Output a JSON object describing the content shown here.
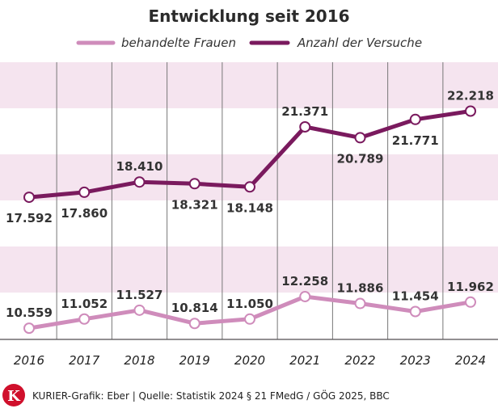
{
  "chart_data": {
    "type": "line",
    "title": "Entwicklung seit 2016",
    "categories": [
      "2016",
      "2017",
      "2018",
      "2019",
      "2020",
      "2021",
      "2022",
      "2023",
      "2024"
    ],
    "series": [
      {
        "name": "behandelte Frauen",
        "color": "#cf8cbb",
        "values": [
          10559,
          11052,
          11527,
          10814,
          11050,
          12258,
          11886,
          11454,
          11962
        ],
        "labels": [
          "10.559",
          "11.052",
          "11.527",
          "10.814",
          "11.050",
          "12.258",
          "11.886",
          "11.454",
          "11.962"
        ]
      },
      {
        "name": "Anzahl der Versuche",
        "color": "#7a1a5e",
        "values": [
          17592,
          17860,
          18410,
          18321,
          18148,
          21371,
          20789,
          21771,
          22218
        ],
        "labels": [
          "17.592",
          "17.860",
          "18.410",
          "18.321",
          "18.148",
          "21.371",
          "20.789",
          "21.771",
          "22.218"
        ]
      }
    ],
    "legend_position": "top",
    "grid": "vertical",
    "band_color": "#f5e4ef"
  },
  "footer": {
    "logo_letter": "K",
    "logo_color": "#d0102c",
    "text": "KURIER-Grafik: Eber | Quelle: Statistik 2024 § 21 FMedG / GÖG 2025, BBC"
  }
}
